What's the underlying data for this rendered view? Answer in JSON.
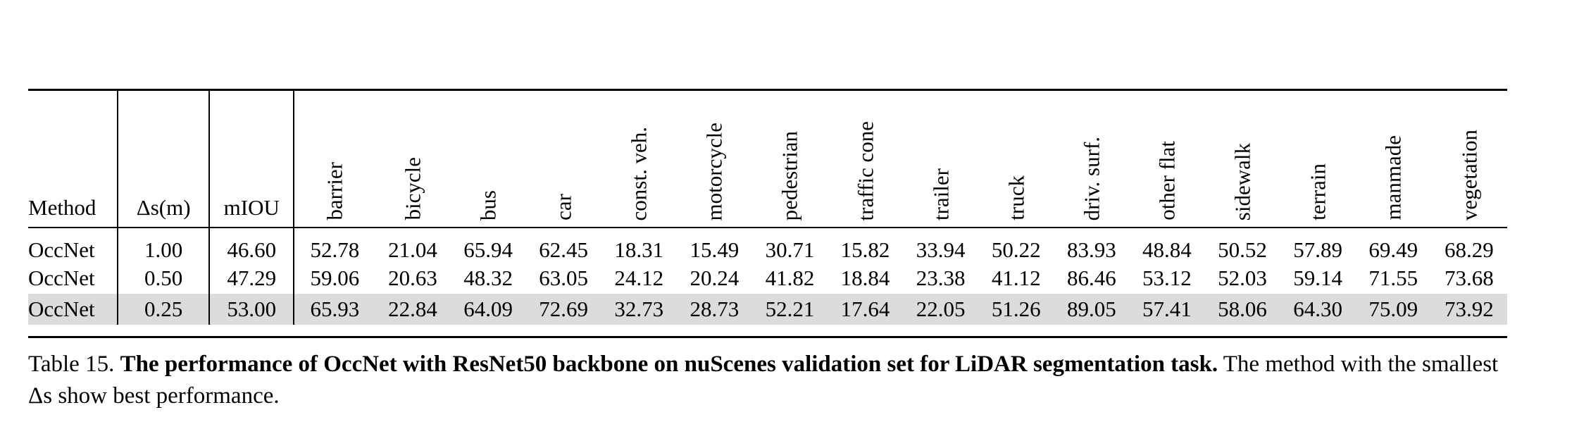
{
  "table": {
    "headers": {
      "method": "Method",
      "delta": "Δs(m)",
      "miou": "mIOU",
      "classes": [
        "barrier",
        "bicycle",
        "bus",
        "car",
        "const. veh.",
        "motorcycle",
        "pedestrian",
        "traffic cone",
        "trailer",
        "truck",
        "driv. surf.",
        "other flat",
        "sidewalk",
        "terrain",
        "manmade",
        "vegetation"
      ]
    },
    "rows": [
      {
        "method": "OccNet",
        "delta": "1.00",
        "miou": "46.60",
        "values": [
          "52.78",
          "21.04",
          "65.94",
          "62.45",
          "18.31",
          "15.49",
          "30.71",
          "15.82",
          "33.94",
          "50.22",
          "83.93",
          "48.84",
          "50.52",
          "57.89",
          "69.49",
          "68.29"
        ]
      },
      {
        "method": "OccNet",
        "delta": "0.50",
        "miou": "47.29",
        "values": [
          "59.06",
          "20.63",
          "48.32",
          "63.05",
          "24.12",
          "20.24",
          "41.82",
          "18.84",
          "23.38",
          "41.12",
          "86.46",
          "53.12",
          "52.03",
          "59.14",
          "71.55",
          "73.68"
        ]
      },
      {
        "method": "OccNet",
        "delta": "0.25",
        "miou": "53.00",
        "values": [
          "65.93",
          "22.84",
          "64.09",
          "72.69",
          "32.73",
          "28.73",
          "52.21",
          "17.64",
          "22.05",
          "51.26",
          "89.05",
          "57.41",
          "58.06",
          "64.30",
          "75.09",
          "73.92"
        ]
      }
    ],
    "highlight_color": "#dcdcdc"
  },
  "caption": {
    "prefix": "Table 15. ",
    "bold": "The performance of OccNet with ResNet50 backbone on nuScenes validation set for LiDAR segmentation task.",
    "rest": " The method with the smallest Δs show best performance."
  }
}
